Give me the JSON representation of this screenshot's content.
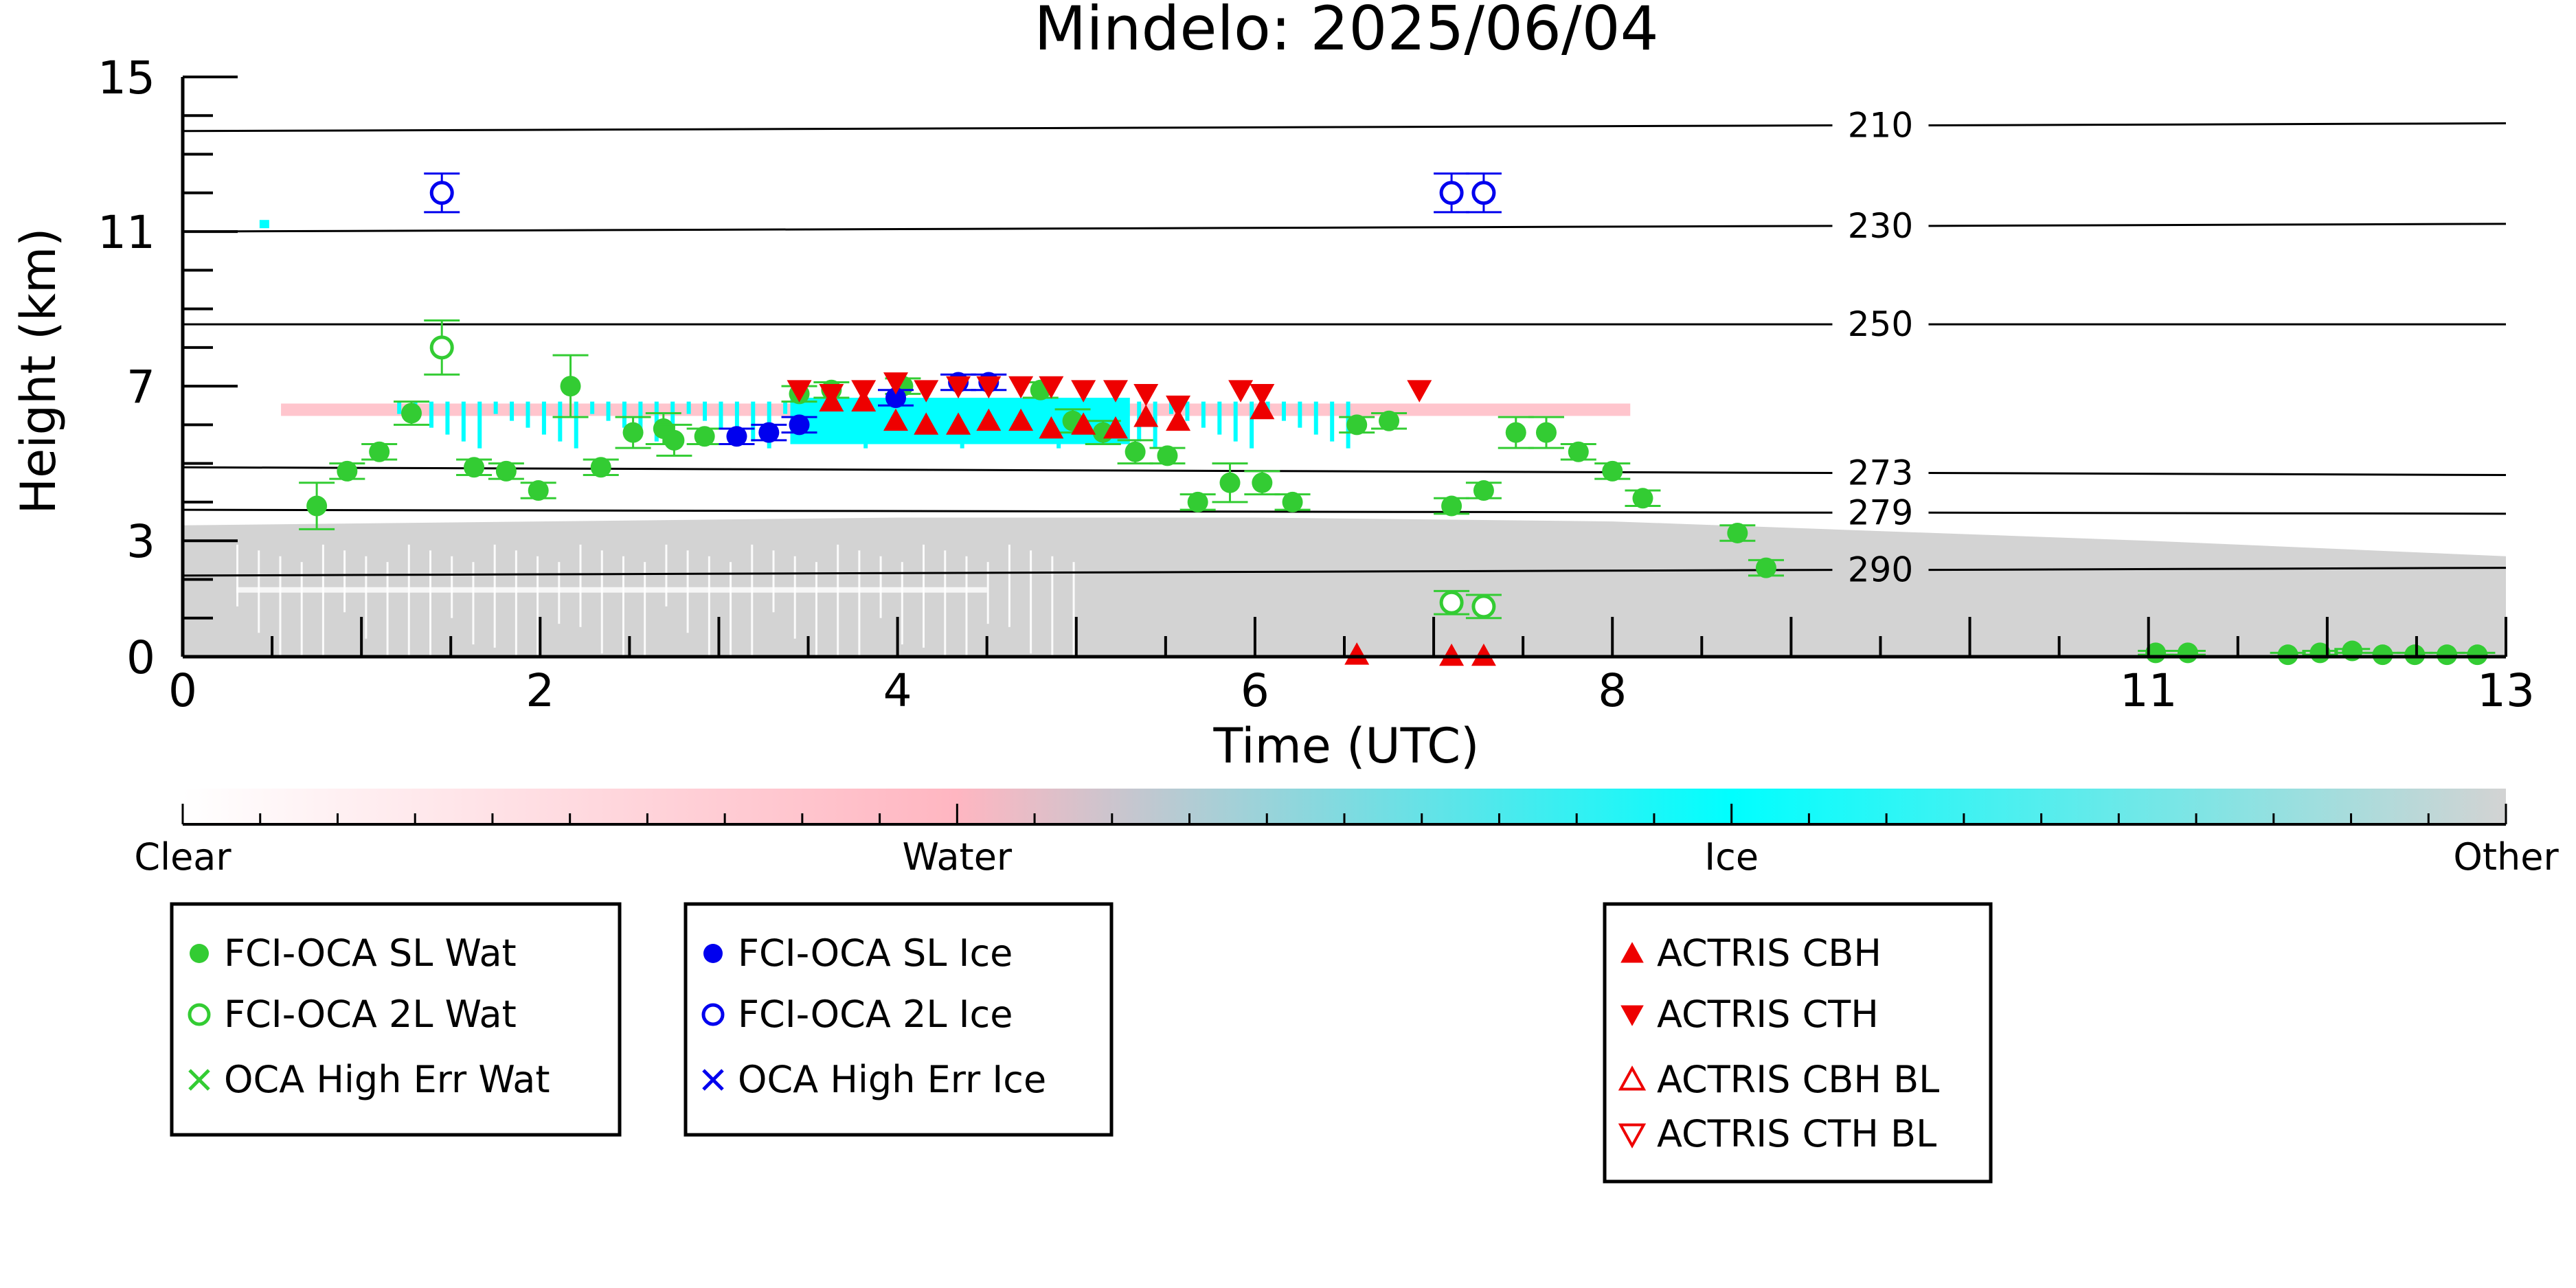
{
  "chart_data": {
    "type": "scatter",
    "title": "Mindelo: 2025/06/04",
    "xlabel": "Time (UTC)",
    "ylabel": "Height (km)",
    "xlim": [
      0,
      13
    ],
    "ylim": [
      0,
      15
    ],
    "x_ticks": [
      "0",
      "2",
      "4",
      "6",
      "8",
      "11",
      "13"
    ],
    "x_tick_values": [
      0,
      2,
      4,
      6,
      8,
      11,
      13
    ],
    "y_ticks": [
      "0",
      "3",
      "7",
      "11",
      "15"
    ],
    "y_tick_values": [
      0,
      3,
      7,
      11,
      15
    ],
    "grid": false,
    "isotherms": [
      {
        "label": "210",
        "y_start": 13.6,
        "y_end": 13.8
      },
      {
        "label": "230",
        "y_start": 11.0,
        "y_end": 11.2
      },
      {
        "label": "250",
        "y_start": 8.6,
        "y_end": 8.6
      },
      {
        "label": "273",
        "y_start": 4.9,
        "y_end": 4.7
      },
      {
        "label": "279",
        "y_start": 3.8,
        "y_end": 3.7
      },
      {
        "label": "290",
        "y_start": 2.1,
        "y_end": 2.3
      }
    ],
    "colorbar": {
      "labels": [
        "Clear",
        "Water",
        "Ice",
        "Other"
      ],
      "colors": [
        "#ffffff",
        "#ffb6c1",
        "#00ffff",
        "#d3d3d3"
      ]
    },
    "legend_groups": [
      [
        "FCI-OCA SL Wat",
        "FCI-OCA 2L Wat",
        "OCA High Err Wat"
      ],
      [
        "FCI-OCA SL Ice",
        "FCI-OCA 2L Ice",
        "OCA High Err Ice"
      ],
      [
        "ACTRIS CBH",
        "ACTRIS CTH",
        "ACTRIS CBH BL",
        "ACTRIS CTH BL"
      ]
    ],
    "series": [
      {
        "name": "FCI-OCA SL Wat",
        "color": "#33cc33",
        "marker": "filled-circle",
        "points": [
          [
            0.75,
            3.9,
            0.6
          ],
          [
            0.92,
            4.8,
            0.2
          ],
          [
            1.1,
            5.3,
            0.2
          ],
          [
            1.28,
            6.3,
            0.3
          ],
          [
            1.63,
            4.9,
            0.2
          ],
          [
            1.81,
            4.8,
            0.2
          ],
          [
            1.99,
            4.3,
            0.2
          ],
          [
            2.17,
            7.0,
            0.8
          ],
          [
            2.34,
            4.9,
            0.2
          ],
          [
            2.52,
            5.8,
            0.4
          ],
          [
            2.69,
            5.9,
            0.4
          ],
          [
            2.75,
            5.6,
            0.4
          ],
          [
            2.92,
            5.7,
            0.2
          ],
          [
            3.45,
            6.8,
            0.2
          ],
          [
            3.63,
            6.9,
            0.2
          ],
          [
            4.03,
            7.0,
            0.2
          ],
          [
            4.8,
            6.9,
            0.2
          ],
          [
            4.98,
            6.1,
            0.3
          ],
          [
            5.15,
            5.8,
            0.3
          ],
          [
            5.33,
            5.3,
            0.3
          ],
          [
            5.51,
            5.2,
            0.2
          ],
          [
            5.68,
            4.0,
            0.2
          ],
          [
            5.86,
            4.5,
            0.5
          ],
          [
            6.04,
            4.5,
            0.3
          ],
          [
            6.21,
            4.0,
            0.2
          ],
          [
            6.57,
            6.0,
            0.2
          ],
          [
            6.75,
            6.1,
            0.2
          ],
          [
            7.1,
            3.9,
            0.2
          ],
          [
            7.28,
            4.3,
            0.2
          ],
          [
            7.46,
            5.8,
            0.4
          ],
          [
            7.63,
            5.8,
            0.4
          ],
          [
            7.81,
            5.3,
            0.2
          ],
          [
            8.0,
            4.8,
            0.2
          ],
          [
            8.17,
            4.1,
            0.2
          ],
          [
            8.7,
            3.2,
            0.2
          ],
          [
            8.86,
            2.3,
            0.2
          ],
          [
            11.04,
            0.1,
            0.05
          ],
          [
            11.22,
            0.1,
            0.05
          ],
          [
            11.78,
            0.05,
            0.05
          ],
          [
            11.96,
            0.1,
            0.05
          ],
          [
            12.14,
            0.15,
            0.05
          ],
          [
            12.31,
            0.05,
            0.05
          ],
          [
            12.49,
            0.05,
            0.05
          ],
          [
            12.67,
            0.05,
            0.05
          ],
          [
            12.84,
            0.05,
            0.05
          ]
        ]
      },
      {
        "name": "FCI-OCA 2L Wat",
        "color": "#33cc33",
        "marker": "open-circle",
        "points": [
          [
            1.45,
            8.0,
            0.7
          ],
          [
            7.1,
            1.4,
            0.3
          ],
          [
            7.28,
            1.3,
            0.3
          ]
        ]
      },
      {
        "name": "FCI-OCA SL Ice",
        "color": "#0000ee",
        "marker": "filled-circle",
        "points": [
          [
            3.1,
            5.7,
            0.2
          ],
          [
            3.28,
            5.8,
            0.2
          ],
          [
            3.45,
            6.0,
            0.2
          ],
          [
            3.99,
            6.7,
            0.2
          ],
          [
            4.34,
            7.1,
            0.2
          ],
          [
            4.51,
            7.1,
            0.2
          ]
        ]
      },
      {
        "name": "FCI-OCA 2L Ice",
        "color": "#0000ee",
        "marker": "open-circle",
        "points": [
          [
            1.45,
            12.0,
            0.5
          ],
          [
            7.1,
            12.0,
            0.5
          ],
          [
            7.28,
            12.0,
            0.5
          ]
        ]
      },
      {
        "name": "ACTRIS CBH",
        "color": "#ee0000",
        "marker": "triangle-up",
        "points": [
          [
            3.63,
            6.6
          ],
          [
            3.81,
            6.6
          ],
          [
            3.99,
            6.1
          ],
          [
            4.16,
            6.0
          ],
          [
            4.34,
            6.0
          ],
          [
            4.51,
            6.1
          ],
          [
            4.69,
            6.1
          ],
          [
            4.86,
            5.9
          ],
          [
            5.04,
            6.0
          ],
          [
            5.22,
            5.9
          ],
          [
            5.39,
            6.2
          ],
          [
            5.57,
            6.1
          ],
          [
            6.04,
            6.4
          ],
          [
            6.57,
            0.05
          ],
          [
            7.1,
            0.02
          ],
          [
            7.28,
            0.02
          ]
        ]
      },
      {
        "name": "ACTRIS CTH",
        "color": "#ee0000",
        "marker": "triangle-down",
        "points": [
          [
            3.45,
            6.9
          ],
          [
            3.63,
            6.8
          ],
          [
            3.81,
            6.9
          ],
          [
            3.99,
            7.1
          ],
          [
            4.16,
            6.9
          ],
          [
            4.34,
            7.0
          ],
          [
            4.51,
            7.0
          ],
          [
            4.69,
            7.0
          ],
          [
            4.86,
            7.0
          ],
          [
            5.04,
            6.9
          ],
          [
            5.22,
            6.9
          ],
          [
            5.39,
            6.8
          ],
          [
            5.57,
            6.5
          ],
          [
            5.92,
            6.9
          ],
          [
            6.04,
            6.8
          ],
          [
            6.92,
            6.9
          ]
        ]
      }
    ]
  }
}
